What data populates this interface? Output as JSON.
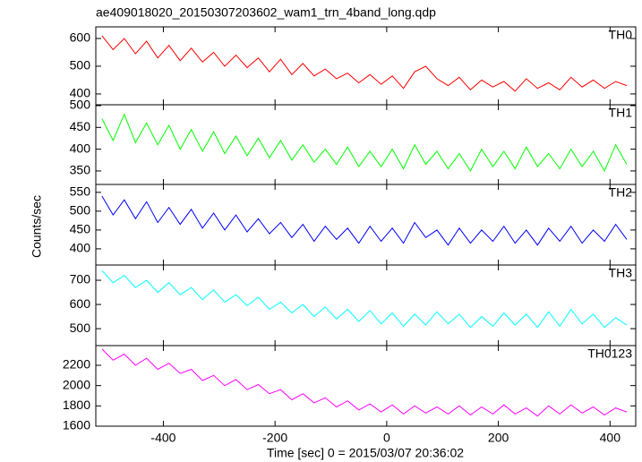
{
  "title": "ae409018020_20150307203602_wam1_trn_4band_long.qdp",
  "xlabel": "Time [sec] 0 = 2015/03/07 20:36:02",
  "ylabel": "Counts/sec",
  "xlim": [
    -521,
    446
  ],
  "xticks": [
    -400,
    -200,
    0,
    200,
    400
  ],
  "x": [
    -510,
    -490,
    -470,
    -450,
    -430,
    -410,
    -390,
    -370,
    -350,
    -330,
    -310,
    -290,
    -270,
    -250,
    -230,
    -210,
    -190,
    -170,
    -150,
    -130,
    -110,
    -90,
    -70,
    -50,
    -30,
    -10,
    10,
    30,
    50,
    70,
    90,
    110,
    130,
    150,
    170,
    190,
    210,
    230,
    250,
    270,
    290,
    310,
    330,
    350,
    370,
    390,
    410,
    430
  ],
  "chart_data": [
    {
      "type": "line",
      "label": "TH0",
      "color": "#ff0000",
      "ylim": [
        361,
        642
      ],
      "yticks": [
        400,
        500,
        600
      ],
      "values": [
        610,
        560,
        600,
        545,
        590,
        530,
        575,
        520,
        565,
        515,
        550,
        500,
        540,
        495,
        530,
        480,
        525,
        470,
        510,
        465,
        490,
        455,
        475,
        440,
        470,
        435,
        465,
        420,
        480,
        500,
        455,
        430,
        460,
        415,
        450,
        425,
        445,
        410,
        455,
        420,
        440,
        415,
        460,
        425,
        450,
        420,
        445,
        430
      ]
    },
    {
      "type": "line",
      "label": "TH1",
      "color": "#00ff00",
      "ylim": [
        319,
        502
      ],
      "yticks": [
        350,
        400,
        450,
        500
      ],
      "values": [
        470,
        420,
        480,
        415,
        460,
        410,
        455,
        400,
        445,
        395,
        440,
        390,
        430,
        385,
        425,
        380,
        420,
        375,
        410,
        370,
        400,
        365,
        405,
        360,
        395,
        360,
        400,
        355,
        410,
        365,
        395,
        355,
        390,
        350,
        400,
        360,
        395,
        355,
        405,
        360,
        390,
        355,
        400,
        360,
        395,
        350,
        410,
        365
      ]
    },
    {
      "type": "line",
      "label": "TH2",
      "color": "#0000ff",
      "ylim": [
        357,
        571
      ],
      "yticks": [
        400,
        450,
        500,
        550
      ],
      "values": [
        540,
        490,
        530,
        480,
        525,
        470,
        510,
        465,
        505,
        455,
        495,
        450,
        490,
        445,
        480,
        440,
        470,
        430,
        465,
        420,
        460,
        425,
        455,
        415,
        460,
        420,
        455,
        415,
        470,
        430,
        450,
        410,
        455,
        415,
        450,
        420,
        460,
        415,
        450,
        410,
        455,
        420,
        460,
        415,
        450,
        420,
        465,
        425
      ]
    },
    {
      "type": "line",
      "label": "TH3",
      "color": "#00ffff",
      "ylim": [
        430,
        763
      ],
      "yticks": [
        500,
        600,
        700
      ],
      "values": [
        740,
        690,
        720,
        670,
        700,
        650,
        690,
        640,
        670,
        620,
        660,
        610,
        640,
        595,
        630,
        580,
        610,
        565,
        600,
        550,
        590,
        540,
        580,
        530,
        575,
        520,
        565,
        510,
        560,
        515,
        570,
        520,
        560,
        505,
        550,
        510,
        565,
        515,
        560,
        505,
        570,
        510,
        580,
        520,
        560,
        505,
        545,
        515
      ]
    },
    {
      "type": "line",
      "label": "TH0123",
      "color": "#ff00ff",
      "ylim": [
        1600,
        2394
      ],
      "yticks": [
        1600,
        1800,
        2000,
        2200
      ],
      "values": [
        2360,
        2250,
        2310,
        2200,
        2270,
        2160,
        2220,
        2120,
        2160,
        2050,
        2100,
        2000,
        2060,
        1960,
        2010,
        1920,
        1960,
        1860,
        1920,
        1830,
        1880,
        1790,
        1850,
        1760,
        1820,
        1740,
        1810,
        1720,
        1800,
        1730,
        1790,
        1720,
        1800,
        1710,
        1790,
        1720,
        1810,
        1720,
        1780,
        1700,
        1800,
        1720,
        1810,
        1730,
        1790,
        1710,
        1780,
        1740
      ]
    }
  ]
}
